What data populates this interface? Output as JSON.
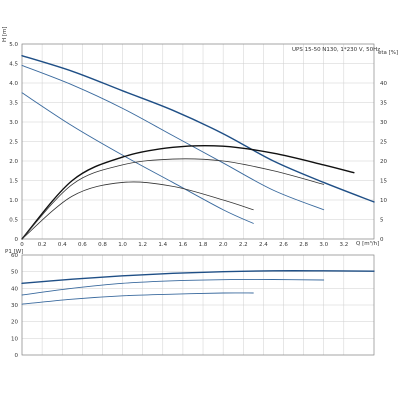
{
  "chart_data": [
    {
      "type": "line",
      "panel": "upper",
      "title": "UPS 15-50 N130, 1*230 V, 50Hz",
      "ylabel": "H [m]",
      "y2label": "eta [%]",
      "xlabel": "Q [m³/h]",
      "xlim": [
        0,
        3.5
      ],
      "ylim": [
        0,
        5.0
      ],
      "y2lim": [
        0,
        50
      ],
      "grid": true,
      "x_ticks": [
        "0",
        "0.2",
        "0.4",
        "0.6",
        "0.8",
        "1.0",
        "1.2",
        "1.4",
        "1.6",
        "1.8",
        "2.0",
        "2.2",
        "2.4",
        "2.6",
        "2.8",
        "3.0",
        "3.2"
      ],
      "y_ticks": [
        "0",
        "0.5",
        "1.0",
        "1.5",
        "2.0",
        "2.5",
        "3.0",
        "3.5",
        "4.0",
        "4.5",
        "5.0"
      ],
      "y2_ticks": [
        "0",
        "5",
        "10",
        "15",
        "20",
        "25",
        "30",
        "35",
        "40"
      ],
      "series": [
        {
          "kind": "head",
          "speed": 3,
          "color": "#1f4f86",
          "width": 1.4,
          "x": [
            0,
            0.5,
            1.0,
            1.5,
            2.0,
            2.5,
            3.0,
            3.5
          ],
          "y": [
            4.7,
            4.3,
            3.8,
            3.3,
            2.7,
            2.0,
            1.45,
            0.95
          ]
        },
        {
          "kind": "head",
          "speed": 2,
          "color": "#3a6a9e",
          "width": 0.9,
          "x": [
            0,
            0.5,
            1.0,
            1.5,
            2.0,
            2.5,
            3.0
          ],
          "y": [
            4.45,
            3.95,
            3.35,
            2.65,
            1.95,
            1.25,
            0.75
          ]
        },
        {
          "kind": "head",
          "speed": 1,
          "color": "#3a6a9e",
          "width": 0.9,
          "x": [
            0,
            0.5,
            1.0,
            1.5,
            2.0,
            2.3
          ],
          "y": [
            3.75,
            2.9,
            2.15,
            1.45,
            0.75,
            0.4
          ]
        },
        {
          "kind": "efficiency",
          "speed": 3,
          "color": "#111111",
          "width": 1.4,
          "x": [
            0,
            0.5,
            1.0,
            1.5,
            2.0,
            2.5,
            3.0,
            3.3
          ],
          "y": [
            0,
            15,
            21,
            23.5,
            23.8,
            22,
            19,
            17
          ]
        },
        {
          "kind": "efficiency",
          "speed": 2,
          "color": "#333333",
          "width": 0.8,
          "x": [
            0,
            0.5,
            1.0,
            1.5,
            2.0,
            2.5,
            3.0
          ],
          "y": [
            0,
            14,
            19,
            20.5,
            20,
            17.5,
            14
          ]
        },
        {
          "kind": "efficiency",
          "speed": 1,
          "color": "#333333",
          "width": 0.8,
          "x": [
            0,
            0.5,
            1.0,
            1.5,
            2.0,
            2.3
          ],
          "y": [
            0,
            11,
            14.5,
            13.5,
            10,
            7.5
          ]
        }
      ]
    },
    {
      "type": "line",
      "panel": "lower",
      "ylabel": "P1 [W]",
      "xlim": [
        0,
        3.5
      ],
      "ylim": [
        0,
        60
      ],
      "grid": true,
      "y_ticks": [
        "0",
        "10",
        "20",
        "30",
        "40",
        "50",
        "60"
      ],
      "series": [
        {
          "speed": 3,
          "color": "#1f4f86",
          "width": 1.4,
          "x": [
            0,
            0.5,
            1.0,
            1.5,
            2.0,
            2.5,
            3.0,
            3.5
          ],
          "y": [
            43,
            45.5,
            47.5,
            49,
            50,
            50.5,
            50.5,
            50.3
          ]
        },
        {
          "speed": 2,
          "color": "#3a6a9e",
          "width": 0.9,
          "x": [
            0,
            0.5,
            1.0,
            1.5,
            2.0,
            2.5,
            3.0
          ],
          "y": [
            36,
            40,
            43,
            44.5,
            45.2,
            45.3,
            45
          ]
        },
        {
          "speed": 1,
          "color": "#3a6a9e",
          "width": 0.9,
          "x": [
            0,
            0.5,
            1.0,
            1.5,
            2.0,
            2.3
          ],
          "y": [
            30.5,
            33.5,
            35.5,
            36.5,
            37.2,
            37.2
          ]
        }
      ]
    }
  ]
}
